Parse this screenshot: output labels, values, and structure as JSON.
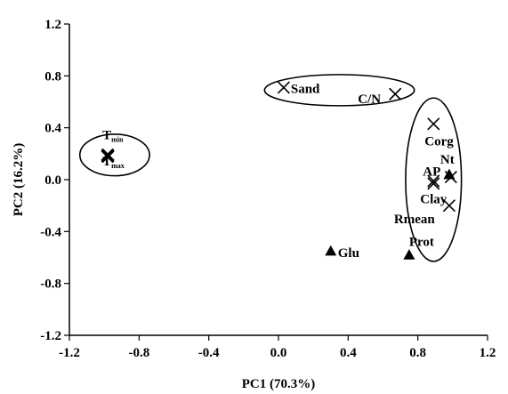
{
  "chart_data": {
    "type": "scatter",
    "xlabel": "PC1 (70.3%)",
    "ylabel": "PC2 (16.2%)",
    "xlim": [
      -1.2,
      1.2
    ],
    "ylim": [
      -1.2,
      1.2
    ],
    "x_ticks": [
      "-1.2",
      "-0.8",
      "-0.4",
      "0.0",
      "0.4",
      "0.8",
      "1.2"
    ],
    "y_ticks": [
      "1.2",
      "0.8",
      "0.4",
      "0.0",
      "-0.4",
      "-0.8",
      "-1.2"
    ],
    "grid": false,
    "points": [
      {
        "label": "T",
        "sub": "min",
        "x": -0.98,
        "y": 0.19,
        "marker": "x"
      },
      {
        "label": "T",
        "sub": "max",
        "x": -0.98,
        "y": 0.18,
        "marker": "x"
      },
      {
        "label": "Sand",
        "x": 0.03,
        "y": 0.71,
        "marker": "x"
      },
      {
        "label": "C/N",
        "x": 0.67,
        "y": 0.66,
        "marker": "x"
      },
      {
        "label": "Corg",
        "x": 0.89,
        "y": 0.43,
        "marker": "x"
      },
      {
        "label": "AP",
        "x": 0.89,
        "y": -0.01,
        "marker": "x"
      },
      {
        "label": "Nt",
        "x": 0.98,
        "y": 0.04,
        "marker": "triangle"
      },
      {
        "label": "Nt",
        "x": 0.99,
        "y": 0.02,
        "marker": "x"
      },
      {
        "label": "Clay",
        "x": 0.89,
        "y": -0.03,
        "marker": "x"
      },
      {
        "label": "Rmean",
        "x": 0.98,
        "y": -0.2,
        "marker": "x"
      },
      {
        "label": "Glu",
        "x": 0.3,
        "y": -0.55,
        "marker": "triangle"
      },
      {
        "label": "Prot",
        "x": 0.75,
        "y": -0.58,
        "marker": "triangle"
      }
    ],
    "groups": [
      {
        "center": [
          -0.94,
          0.19
        ],
        "radii": [
          0.2,
          0.16
        ]
      },
      {
        "center": [
          0.35,
          0.69
        ],
        "radii": [
          0.43,
          0.12
        ]
      },
      {
        "center": [
          0.89,
          0.0
        ],
        "radii": [
          0.16,
          0.63
        ]
      }
    ]
  }
}
